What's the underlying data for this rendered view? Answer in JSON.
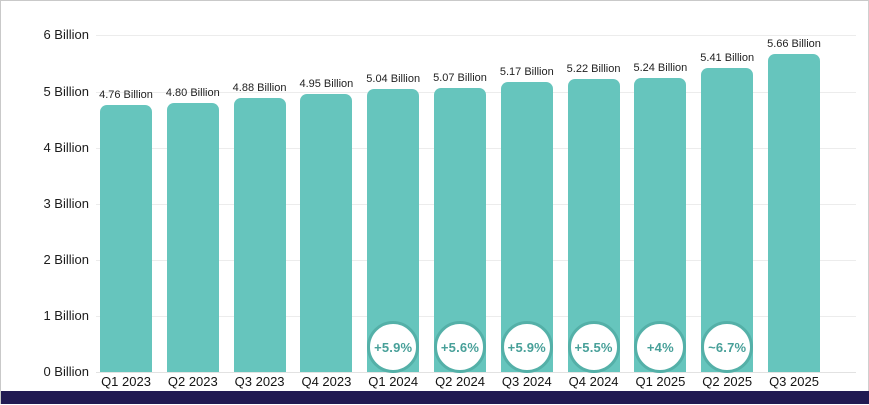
{
  "chart_data": {
    "type": "bar",
    "categories": [
      "Q1 2023",
      "Q2 2023",
      "Q3 2023",
      "Q4 2023",
      "Q1 2024",
      "Q2 2024",
      "Q3 2024",
      "Q4 2024",
      "Q1 2025",
      "Q2 2025",
      "Q3 2025"
    ],
    "values": [
      4.76,
      4.8,
      4.88,
      4.95,
      5.04,
      5.07,
      5.17,
      5.22,
      5.24,
      5.41,
      5.66
    ],
    "value_labels": [
      "4.76 Billion",
      "4.80 Billion",
      "4.88 Billion",
      "4.95 Billion",
      "5.04 Billion",
      "5.07 Billion",
      "5.17 Billion",
      "5.22 Billion",
      "5.24 Billion",
      "5.41 Billion",
      "5.66 Billion"
    ],
    "badges": [
      null,
      null,
      null,
      null,
      "+5.9%",
      "+5.6%",
      "+5.9%",
      "+5.5%",
      "+4%",
      "~6.7%",
      null
    ],
    "y_ticks": [
      "0 Billion",
      "1 Billion",
      "2 Billion",
      "3 Billion",
      "4 Billion",
      "5 Billion",
      "6 Billion"
    ],
    "ylim": [
      0,
      6
    ],
    "title": "",
    "xlabel": "",
    "ylabel": "",
    "grid": true,
    "legend_position": "none",
    "bar_color": "#66c5bd",
    "badge_border_color": "#54b0a8",
    "badge_text_color": "#48a099",
    "accent_bar_color": "#211a52"
  }
}
